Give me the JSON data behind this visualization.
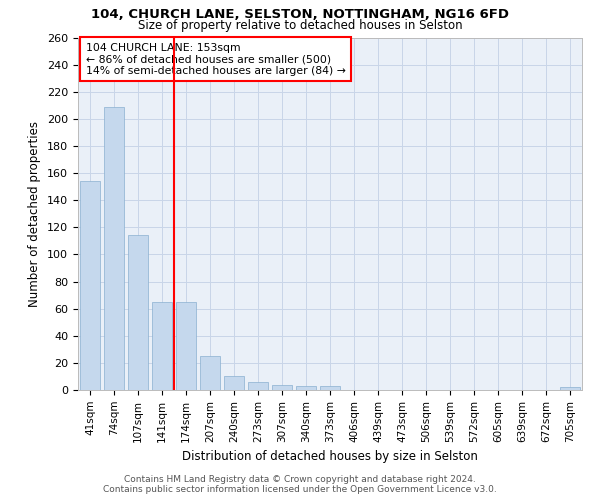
{
  "title1": "104, CHURCH LANE, SELSTON, NOTTINGHAM, NG16 6FD",
  "title2": "Size of property relative to detached houses in Selston",
  "xlabel": "Distribution of detached houses by size in Selston",
  "ylabel": "Number of detached properties",
  "categories": [
    "41sqm",
    "74sqm",
    "107sqm",
    "141sqm",
    "174sqm",
    "207sqm",
    "240sqm",
    "273sqm",
    "307sqm",
    "340sqm",
    "373sqm",
    "406sqm",
    "439sqm",
    "473sqm",
    "506sqm",
    "539sqm",
    "572sqm",
    "605sqm",
    "639sqm",
    "672sqm",
    "705sqm"
  ],
  "values": [
    154,
    209,
    114,
    65,
    65,
    25,
    10,
    6,
    4,
    3,
    3,
    0,
    0,
    0,
    0,
    0,
    0,
    0,
    0,
    0,
    2
  ],
  "bar_color": "#c5d8ed",
  "bar_edge_color": "#8ab0d0",
  "grid_color": "#c8d5e8",
  "background_color": "#eaf0f8",
  "red_line_x": 3.5,
  "annotation_title": "104 CHURCH LANE: 153sqm",
  "annotation_line1": "← 86% of detached houses are smaller (500)",
  "annotation_line2": "14% of semi-detached houses are larger (84) →",
  "ylim": [
    0,
    260
  ],
  "yticks": [
    0,
    20,
    40,
    60,
    80,
    100,
    120,
    140,
    160,
    180,
    200,
    220,
    240,
    260
  ],
  "footer_line1": "Contains HM Land Registry data © Crown copyright and database right 2024.",
  "footer_line2": "Contains public sector information licensed under the Open Government Licence v3.0."
}
